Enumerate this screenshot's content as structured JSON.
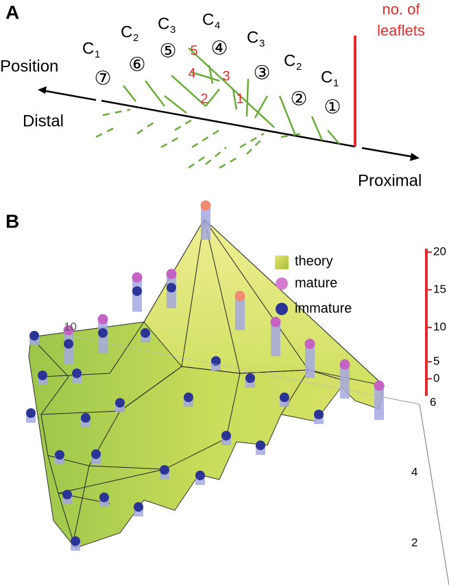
{
  "panel_a": {
    "label": "A",
    "position": "Position",
    "distal": "Distal",
    "proximal": "Proximal",
    "leaflets": [
      "no. of",
      "leaflets"
    ],
    "classes": [
      {
        "c": "C",
        "sub": "1",
        "circle": "⑦"
      },
      {
        "c": "C",
        "sub": "2",
        "circle": "⑥"
      },
      {
        "c": "C",
        "sub": "3",
        "circle": "⑤"
      },
      {
        "c": "C",
        "sub": "4",
        "circle": "④"
      },
      {
        "c": "C",
        "sub": "3",
        "circle": "③"
      },
      {
        "c": "C",
        "sub": "2",
        "circle": "②"
      },
      {
        "c": "C",
        "sub": "1",
        "circle": "①"
      }
    ],
    "red_numbers": [
      "5",
      "4",
      "3",
      "2",
      "1"
    ]
  },
  "panel_b": {
    "label": "B",
    "legend": [
      "theory",
      "mature",
      "immature"
    ],
    "z_ticks": [
      "20",
      "15",
      "10",
      "5",
      "0"
    ],
    "depth_ticks": [
      "6",
      "4",
      "2"
    ],
    "back_tick": "10"
  }
}
